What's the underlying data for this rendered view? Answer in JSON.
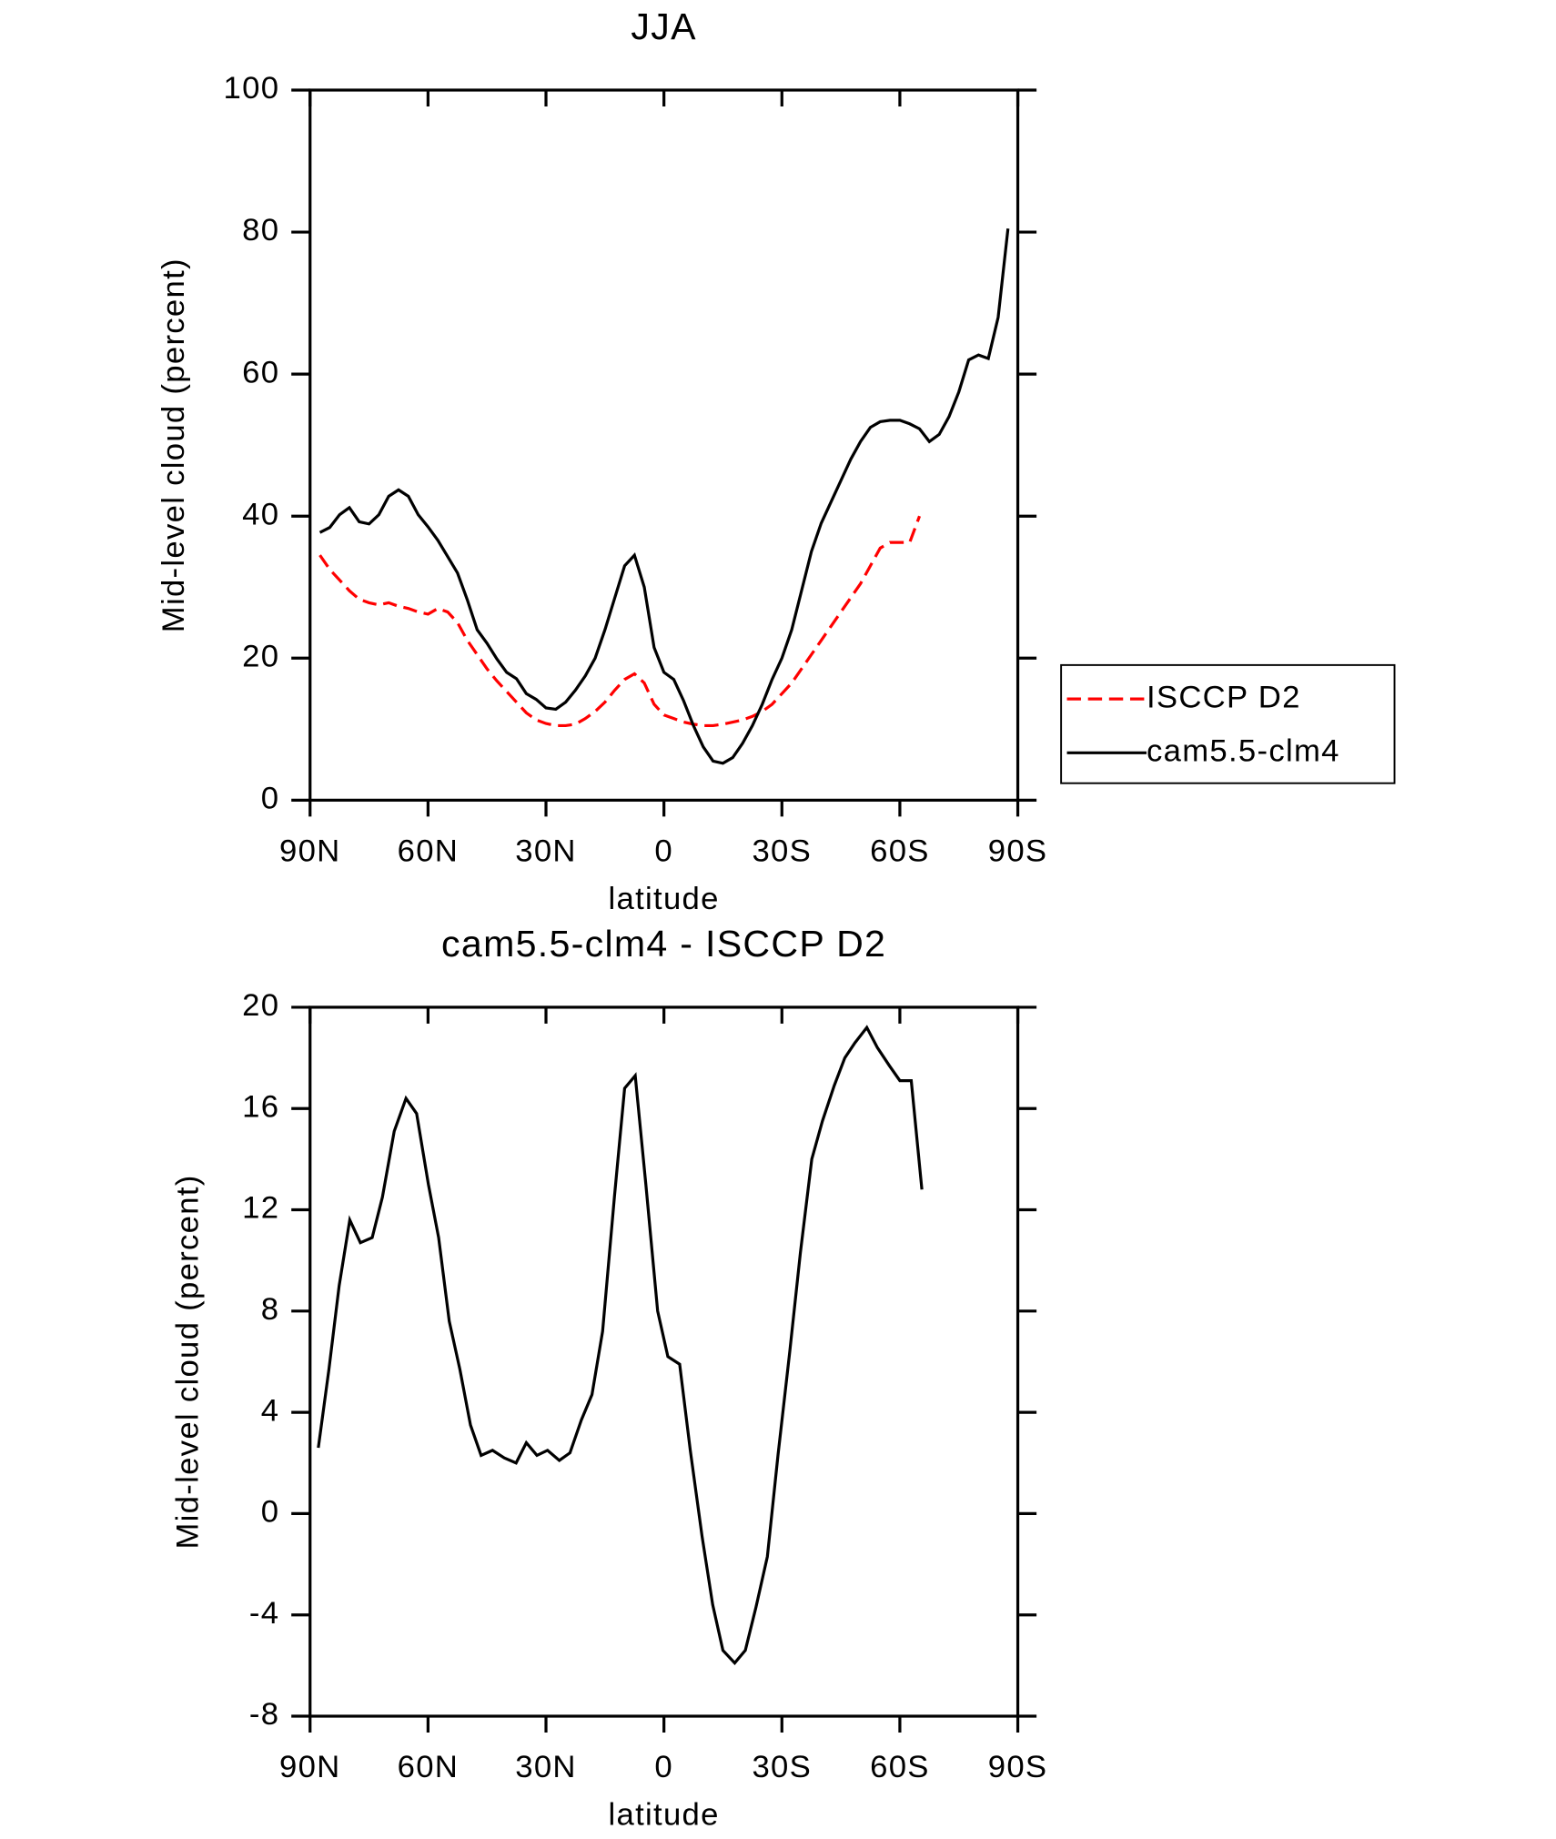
{
  "chart_data": [
    {
      "type": "line",
      "title": "JJA",
      "xlabel": "latitude",
      "ylabel": "Mid-level cloud (percent)",
      "x": [
        87.5,
        85,
        82.5,
        80,
        77.5,
        75,
        72.5,
        70,
        67.5,
        65,
        62.5,
        60,
        57.5,
        55,
        52.5,
        50,
        47.5,
        45,
        42.5,
        40,
        37.5,
        35,
        32.5,
        30,
        27.5,
        25,
        22.5,
        20,
        17.5,
        15,
        12.5,
        10,
        7.5,
        5,
        2.5,
        0,
        -2.5,
        -5,
        -7.5,
        -10,
        -12.5,
        -15,
        -17.5,
        -20,
        -22.5,
        -25,
        -27.5,
        -30,
        -32.5,
        -35,
        -37.5,
        -40,
        -42.5,
        -45,
        -47.5,
        -50,
        -52.5,
        -55,
        -57.5,
        -60,
        -62.5,
        -65,
        -67.5,
        -70,
        -72.5,
        -75,
        -77.5,
        -80,
        -82.5,
        -85,
        -87.5
      ],
      "series": [
        {
          "name": "ISCCP D2",
          "color": "#ff0000",
          "dashed": true,
          "values": [
            34.5,
            32.5,
            31,
            29.5,
            28.3,
            27.8,
            27.5,
            27.8,
            27.3,
            27,
            26.5,
            26.2,
            27,
            26.5,
            25,
            22.5,
            20.5,
            18.5,
            16.8,
            15.3,
            13.8,
            12.3,
            11.3,
            10.8,
            10.5,
            10.5,
            10.7,
            11.5,
            12.5,
            13.8,
            15.5,
            17,
            17.8,
            16.5,
            13.5,
            12,
            11.5,
            11,
            10.7,
            10.5,
            10.5,
            10.7,
            11,
            11.3,
            11.8,
            12.5,
            13.5,
            15,
            16.5,
            18.5,
            20.5,
            22.5,
            24.5,
            26.5,
            28.5,
            30.5,
            33,
            35.5,
            36.3,
            36.3,
            36.3,
            40,
            null,
            null,
            null,
            null,
            null,
            null,
            null,
            null,
            null
          ]
        },
        {
          "name": "cam5.5-clm4",
          "color": "#000000",
          "dashed": false,
          "values": [
            37.7,
            38.4,
            40.2,
            41.2,
            39.2,
            38.9,
            40.2,
            42.8,
            43.7,
            42.8,
            40.2,
            38.5,
            36.6,
            34.3,
            32,
            28.2,
            24,
            22.1,
            19.9,
            18,
            17.1,
            15,
            14.2,
            13,
            12.8,
            13.8,
            15.5,
            17.5,
            20,
            24,
            28.5,
            33,
            34.5,
            30,
            21.5,
            18,
            17,
            14,
            10.5,
            7.5,
            5.5,
            5.2,
            6,
            8,
            10.5,
            13.5,
            17,
            20,
            24,
            29.5,
            35,
            39,
            42,
            45,
            48,
            50.5,
            52.5,
            53.3,
            53.5,
            53.5,
            53,
            52.3,
            50.5,
            51.5,
            54,
            57.5,
            62,
            62.7,
            62.2,
            68,
            80.5
          ]
        }
      ],
      "xlim": [
        90,
        -90
      ],
      "xticks": [
        {
          "value": 90,
          "label": "90N"
        },
        {
          "value": 60,
          "label": "60N"
        },
        {
          "value": 30,
          "label": "30N"
        },
        0,
        {
          "value": -30,
          "label": "30S"
        },
        {
          "value": -60,
          "label": "60S"
        },
        {
          "value": -90,
          "label": "90S"
        }
      ],
      "ylim": [
        0,
        100
      ],
      "yticks": [
        0,
        20,
        40,
        60,
        80,
        100
      ],
      "legend": "right"
    },
    {
      "type": "line",
      "title": "cam5.5-clm4 - ISCCP D2",
      "xlabel": "latitude",
      "ylabel": "Mid-level cloud (percent)",
      "x": [
        87.9,
        85.2,
        82.6,
        79.9,
        77.2,
        74.2,
        71.6,
        68.6,
        65.6,
        62.9,
        59.9,
        57.3,
        54.6,
        51.9,
        49.2,
        46.5,
        43.6,
        40.6,
        37.6,
        35,
        32.3,
        29.6,
        26.6,
        23.9,
        21,
        18.3,
        15.6,
        12.6,
        10,
        7.3,
        4.6,
        1.6,
        -1,
        -4,
        -6.7,
        -9.7,
        -12.4,
        -15,
        -18,
        -20.7,
        -23.4,
        -26.3,
        -29,
        -32,
        -34.7,
        -37.6,
        -40.3,
        -43.3,
        -46,
        -48.6,
        -51.6,
        -54.3,
        -57.3,
        -60,
        -62.9,
        -65.6
      ],
      "series": [
        {
          "color": "#000000",
          "dashed": false,
          "values": [
            2.6,
            5.7,
            9,
            11.6,
            10.7,
            10.9,
            12.5,
            15.1,
            16.4,
            15.8,
            13,
            10.9,
            7.6,
            5.7,
            3.5,
            2.3,
            2.5,
            2.2,
            2,
            2.8,
            2.3,
            2.5,
            2.1,
            2.4,
            3.7,
            4.7,
            7.2,
            12.5,
            16.8,
            17.3,
            13,
            8,
            6.2,
            5.9,
            2.5,
            -0.9,
            -3.6,
            -5.4,
            -5.9,
            -5.4,
            -3.7,
            -1.7,
            2.3,
            6.4,
            10.3,
            14,
            15.5,
            16.9,
            18,
            18.6,
            19.2,
            18.4,
            17.7,
            17.1,
            17.1,
            12.8
          ]
        }
      ],
      "xlim": [
        90,
        -90
      ],
      "xticks": [
        {
          "value": 90,
          "label": "90N"
        },
        {
          "value": 60,
          "label": "60N"
        },
        {
          "value": 30,
          "label": "30N"
        },
        0,
        {
          "value": -30,
          "label": "30S"
        },
        {
          "value": -60,
          "label": "60S"
        },
        {
          "value": -90,
          "label": "90S"
        }
      ],
      "ylim": [
        -8,
        20
      ],
      "yticks": [
        -8,
        -4,
        0,
        4,
        8,
        12,
        16,
        20
      ]
    }
  ]
}
